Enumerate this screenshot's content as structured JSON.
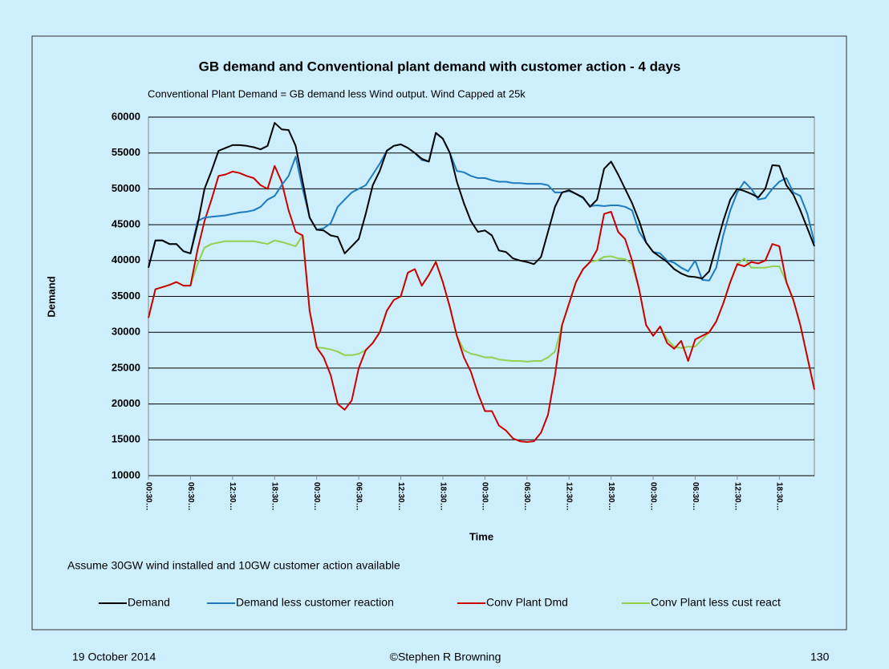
{
  "chart_data": {
    "type": "line",
    "title": "GB demand and Conventional plant demand with customer action - 4 days",
    "subtitle": "Conventional Plant Demand = GB demand less Wind output.  Wind Capped at 25k",
    "y_label": "Demand",
    "x_label": "Time",
    "annotation": "Assume 30GW wind installed and 10GW customer action available",
    "ylim": [
      10000,
      60000
    ],
    "yticks": [
      10000,
      15000,
      20000,
      25000,
      30000,
      35000,
      40000,
      45000,
      50000,
      55000,
      60000
    ],
    "grid": true,
    "categories": [
      "00:30…",
      null,
      null,
      null,
      null,
      null,
      "06:30…",
      null,
      null,
      null,
      null,
      null,
      "12:30…",
      null,
      null,
      null,
      null,
      null,
      "18:30…",
      null,
      null,
      null,
      null,
      null,
      "00:30…",
      null,
      null,
      null,
      null,
      null,
      "06:30…",
      null,
      null,
      null,
      null,
      null,
      "12:30…",
      null,
      null,
      null,
      null,
      null,
      "18:30…",
      null,
      null,
      null,
      null,
      null,
      "00:30…",
      null,
      null,
      null,
      null,
      null,
      "06:30…",
      null,
      null,
      null,
      null,
      null,
      "12:30…",
      null,
      null,
      null,
      null,
      null,
      "18:30…",
      null,
      null,
      null,
      null,
      null,
      "00:30…",
      null,
      null,
      null,
      null,
      null,
      "06:30…",
      null,
      null,
      null,
      null,
      null,
      "12:30…",
      null,
      null,
      null,
      null,
      null,
      "18:30…",
      null,
      null,
      null,
      null,
      null
    ],
    "series": [
      {
        "name": "Demand",
        "color": "#000000",
        "values": [
          39000,
          42800,
          42800,
          42300,
          42300,
          41300,
          41000,
          45000,
          50000,
          52500,
          55300,
          55700,
          56100,
          56100,
          56000,
          55800,
          55500,
          56000,
          59200,
          58300,
          58200,
          56000,
          51000,
          46000,
          44300,
          44200,
          43500,
          43300,
          41000,
          42000,
          43000,
          46500,
          50500,
          52500,
          55300,
          56000,
          56200,
          55700,
          55000,
          54200,
          53800,
          57800,
          57000,
          55000,
          51000,
          48000,
          45500,
          44000,
          44200,
          43500,
          41400,
          41200,
          40300,
          40000,
          39800,
          39500,
          40500,
          44000,
          47500,
          49500,
          49800,
          49300,
          48800,
          47500,
          48500,
          52800,
          53800,
          52000,
          50000,
          48000,
          45500,
          42500,
          41200,
          40500,
          39800,
          38800,
          38200,
          37800,
          37700,
          37500,
          38500,
          42000,
          45500,
          48500,
          50000,
          49700,
          49300,
          48800,
          50000,
          53300,
          53200,
          50500,
          49200,
          47000,
          44500,
          42000
        ]
      },
      {
        "name": "Demand less customer reaction",
        "color": "#1f7bc1",
        "values": [
          39000,
          42800,
          42800,
          42300,
          42300,
          41300,
          41000,
          45500,
          46000,
          46100,
          46200,
          46300,
          46500,
          46700,
          46800,
          47000,
          47500,
          48500,
          49000,
          50500,
          51800,
          54500,
          50000,
          46000,
          44300,
          44500,
          45200,
          47500,
          48500,
          49500,
          50000,
          50500,
          52000,
          53500,
          55300,
          56000,
          56200,
          55700,
          55000,
          54000,
          53800,
          57800,
          57000,
          55000,
          52500,
          52300,
          51800,
          51500,
          51500,
          51200,
          51000,
          51000,
          50800,
          50800,
          50700,
          50700,
          50700,
          50500,
          49500,
          49500,
          49700,
          49300,
          48700,
          47600,
          47700,
          47600,
          47700,
          47700,
          47500,
          47000,
          44000,
          42500,
          41200,
          41000,
          40000,
          39700,
          39000,
          38500,
          40000,
          37300,
          37200,
          39000,
          43500,
          47000,
          49500,
          51000,
          50000,
          48500,
          48700,
          50000,
          51000,
          51500,
          49500,
          49000,
          46500,
          42500
        ]
      },
      {
        "name": "Conv Plant Dmd",
        "color": "#cc0000",
        "values": [
          32000,
          36000,
          36300,
          36600,
          37000,
          36500,
          36500,
          41500,
          45500,
          48500,
          51800,
          52000,
          52400,
          52200,
          51800,
          51500,
          50500,
          50000,
          53200,
          51000,
          47000,
          44000,
          43500,
          33000,
          27900,
          26500,
          24000,
          20000,
          19200,
          20500,
          25000,
          27500,
          28500,
          30000,
          33000,
          34500,
          35000,
          38300,
          38800,
          36500,
          38000,
          39800,
          37000,
          33500,
          29500,
          26500,
          24500,
          21500,
          19000,
          19000,
          17000,
          16300,
          15200,
          14800,
          14700,
          14800,
          16000,
          18500,
          24000,
          31000,
          34000,
          37000,
          38800,
          39800,
          41500,
          46500,
          46800,
          44000,
          43000,
          40000,
          36000,
          31000,
          29500,
          30800,
          28500,
          27700,
          28800,
          26000,
          29000,
          29500,
          30000,
          31500,
          34000,
          37000,
          39500,
          39200,
          39800,
          39600,
          40000,
          42300,
          42000,
          37000,
          34500,
          31000,
          26500,
          22000
        ]
      },
      {
        "name": "Conv Plant less cust react",
        "color": "#92d050",
        "values": [
          32000,
          36000,
          36300,
          36600,
          37000,
          36500,
          36500,
          39500,
          41800,
          42300,
          42500,
          42700,
          42700,
          42700,
          42700,
          42700,
          42500,
          42300,
          42800,
          42600,
          42300,
          42000,
          43500,
          33000,
          27900,
          27800,
          27600,
          27300,
          26800,
          26800,
          27000,
          27500,
          28500,
          30000,
          33000,
          34500,
          35000,
          38300,
          38800,
          36500,
          38000,
          39800,
          37000,
          33500,
          29500,
          27500,
          27000,
          26800,
          26500,
          26500,
          26200,
          26100,
          26000,
          26000,
          25900,
          26000,
          26000,
          26500,
          27300,
          31000,
          34000,
          37000,
          38800,
          39800,
          40000,
          40500,
          40600,
          40300,
          40200,
          39500,
          36000,
          31000,
          29500,
          30800,
          29000,
          28000,
          27800,
          28000,
          28000,
          29000,
          30000,
          31500,
          34000,
          37000,
          39500,
          40300,
          39000,
          39000,
          39000,
          39200,
          39200,
          37000,
          34500,
          31000,
          26500,
          22000
        ]
      }
    ]
  },
  "footer": {
    "date": "19 October 2014",
    "author": "©Stephen R Browning",
    "page": "130"
  }
}
